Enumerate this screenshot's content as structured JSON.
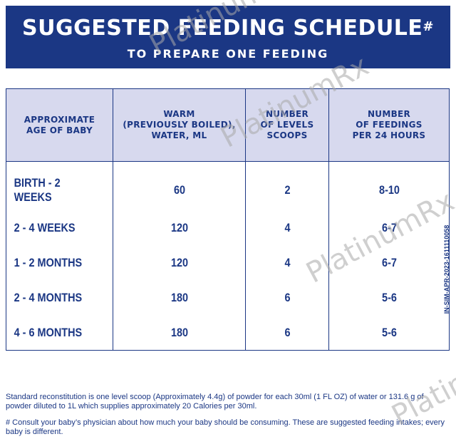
{
  "banner": {
    "title": "SUGGESTED FEEDING SCHEDULE",
    "title_mark": "#",
    "subtitle": "TO PREPARE ONE FEEDING"
  },
  "table": {
    "headers": [
      "APPROXIMATE\nAGE OF BABY",
      "WARM\n(PREVIOUSLY BOILED),\nWATER, ML",
      "NUMBER\nOF LEVELS\nSCOOPS",
      "NUMBER\nOF FEEDINGS\nPER 24 HOURS"
    ],
    "rows": [
      {
        "age": "BIRTH - 2 WEEKS",
        "water": "60",
        "scoops": "2",
        "feedings": "8-10"
      },
      {
        "age": "2 - 4 WEEKS",
        "water": "120",
        "scoops": "4",
        "feedings": "6-7"
      },
      {
        "age": "1 - 2 MONTHS",
        "water": "120",
        "scoops": "4",
        "feedings": "6-7"
      },
      {
        "age": "2 - 4 MONTHS",
        "water": "180",
        "scoops": "6",
        "feedings": "5-6"
      },
      {
        "age": "4 - 6 MONTHS",
        "water": "180",
        "scoops": "6",
        "feedings": "5-6"
      }
    ]
  },
  "side_code": "IN-SIM-APR-2023-1611110058",
  "footnotes": {
    "reconstitution": "Standard reconstitution is one level scoop (Approximately 4.4g) of powder for each 30ml (1 FL OZ) of water or 131.6 g of powder diluted to 1L which supplies approximately 20 Calories per 30ml.",
    "consult": "# Consult your baby’s physician about how much your baby should be consuming. These are suggested feeding intakes; every baby is different."
  },
  "watermark": "PlatinumRx",
  "colors": {
    "navy": "#1b3784",
    "header_fill": "#d7d9ee"
  }
}
